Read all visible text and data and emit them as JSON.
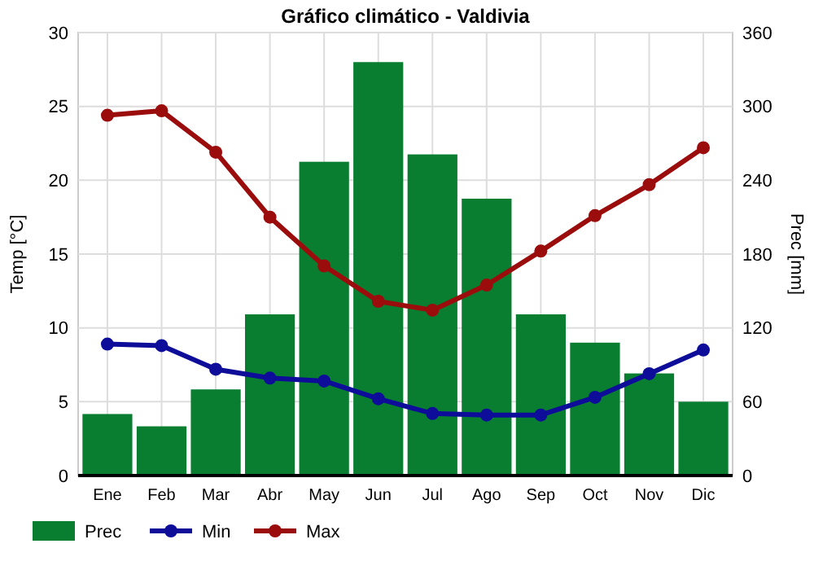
{
  "chart_data": {
    "type": "bar",
    "title": "Gráfico climático - Valdivia",
    "ylabel": "Temp [°C]",
    "y2label": "Prec [mm]",
    "categories": [
      "Ene",
      "Feb",
      "Mar",
      "Abr",
      "May",
      "Jun",
      "Jul",
      "Ago",
      "Sep",
      "Oct",
      "Nov",
      "Dic"
    ],
    "series": [
      {
        "name": "Prec",
        "axis": "y2",
        "color": "#0a7e30",
        "values": [
          50,
          40,
          70,
          131,
          255,
          336,
          261,
          225,
          131,
          108,
          83,
          60
        ]
      },
      {
        "name": "Min",
        "type": "line",
        "color": "#0d0d99",
        "marker": "circle",
        "values": [
          8.9,
          8.8,
          7.2,
          6.6,
          6.4,
          5.2,
          4.2,
          4.1,
          4.1,
          5.3,
          6.9,
          8.5
        ]
      },
      {
        "name": "Max",
        "type": "line",
        "color": "#9b0d0d",
        "marker": "circle",
        "values": [
          24.4,
          24.7,
          21.9,
          17.5,
          14.2,
          11.8,
          11.2,
          12.9,
          15.2,
          17.6,
          19.7,
          22.2
        ]
      }
    ],
    "ylim": [
      0,
      30
    ],
    "yticks": [
      0,
      5,
      10,
      15,
      20,
      25,
      30
    ],
    "y2lim": [
      0,
      360
    ],
    "y2ticks": [
      0,
      60,
      120,
      180,
      240,
      300,
      360
    ],
    "grid": true,
    "legend": "bottom"
  }
}
